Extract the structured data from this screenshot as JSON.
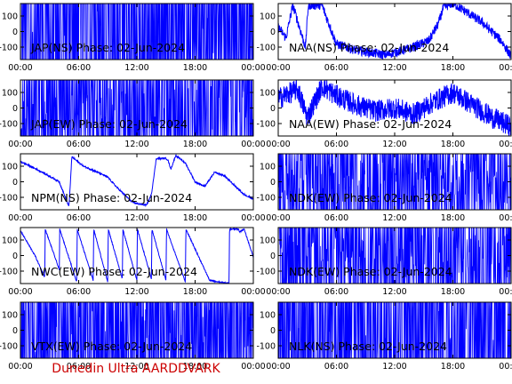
{
  "footer_text": "Dunedin Ultra AARDDVARK",
  "colors": {
    "trace": "#0000ff",
    "axis": "#000000",
    "footer": "#cc0000",
    "background": "#ffffff"
  },
  "chart_data": [
    {
      "type": "line",
      "title": "JAP(NS) Phase: 02-Jun-2024",
      "ylim": [
        -180,
        180
      ],
      "yticks": [
        100,
        0,
        -100
      ],
      "xticks": [
        "00:00",
        "06:00",
        "12:00",
        "18:00",
        "00:00"
      ],
      "xlim_hours": [
        0,
        24
      ],
      "behavior": "dense",
      "fill": 0.98,
      "points": [
        [
          0,
          0
        ],
        [
          24,
          0
        ]
      ]
    },
    {
      "type": "line",
      "title": "NAA(NS) Phase: 02-Jun-2024",
      "ylim": [
        -180,
        180
      ],
      "yticks": [
        100,
        0,
        -100
      ],
      "xticks": [
        "00:00",
        "06:00",
        "12:00",
        "18:00",
        "00:00"
      ],
      "xlim_hours": [
        0,
        24
      ],
      "behavior": "trace",
      "noise": 30,
      "points": [
        [
          0,
          30
        ],
        [
          0.8,
          -40
        ],
        [
          1.5,
          170
        ],
        [
          2.8,
          -100
        ],
        [
          3.1,
          170
        ],
        [
          4.5,
          170
        ],
        [
          6,
          -80
        ],
        [
          8,
          -120
        ],
        [
          11,
          -150
        ],
        [
          13.5,
          -110
        ],
        [
          15.5,
          -60
        ],
        [
          16.5,
          50
        ],
        [
          17,
          150
        ],
        [
          17.8,
          180
        ],
        [
          18.3,
          170
        ],
        [
          21,
          60
        ],
        [
          23,
          -60
        ],
        [
          24,
          -160
        ]
      ]
    },
    {
      "type": "line",
      "title": "JAP(EW) Phase: 02-Jun-2024",
      "ylim": [
        -180,
        180
      ],
      "yticks": [
        100,
        0,
        -100
      ],
      "xticks": [
        "00:00",
        "06:00",
        "12:00",
        "18:00",
        "00:00"
      ],
      "xlim_hours": [
        0,
        24
      ],
      "behavior": "dense",
      "fill": 0.85,
      "points": [
        [
          0,
          0
        ],
        [
          24,
          0
        ]
      ]
    },
    {
      "type": "line",
      "title": "NAA(EW) Phase: 02-Jun-2024",
      "ylim": [
        -180,
        180
      ],
      "yticks": [
        100,
        0,
        -100
      ],
      "xticks": [
        "00:00",
        "06:00",
        "12:00",
        "18:00",
        "00:00"
      ],
      "xlim_hours": [
        0,
        24
      ],
      "behavior": "trace",
      "noise": 70,
      "points": [
        [
          0,
          60
        ],
        [
          2,
          120
        ],
        [
          3,
          -60
        ],
        [
          4.5,
          140
        ],
        [
          6,
          80
        ],
        [
          8,
          20
        ],
        [
          10,
          -20
        ],
        [
          12,
          0
        ],
        [
          14,
          -40
        ],
        [
          16,
          40
        ],
        [
          18,
          100
        ],
        [
          20,
          20
        ],
        [
          22,
          -60
        ],
        [
          24,
          -120
        ]
      ]
    },
    {
      "type": "line",
      "title": "NPM(NS) Phase: 02-Jun-2024",
      "ylim": [
        -180,
        180
      ],
      "yticks": [
        100,
        0,
        -100
      ],
      "xticks": [
        "00:00",
        "06:00",
        "12:00",
        "18:00",
        "00:00"
      ],
      "xlim_hours": [
        0,
        24
      ],
      "behavior": "trace",
      "noise": 5,
      "points": [
        [
          0,
          130
        ],
        [
          2,
          70
        ],
        [
          4,
          0
        ],
        [
          5,
          -160
        ],
        [
          5.3,
          160
        ],
        [
          6.5,
          100
        ],
        [
          8,
          60
        ],
        [
          9,
          30
        ],
        [
          10,
          -40
        ],
        [
          11.5,
          -130
        ],
        [
          12,
          -140
        ],
        [
          13,
          -150
        ],
        [
          13.5,
          -80
        ],
        [
          14,
          150
        ],
        [
          15,
          150
        ],
        [
          15.2,
          140
        ],
        [
          15.5,
          80
        ],
        [
          16,
          170
        ],
        [
          17,
          120
        ],
        [
          17.5,
          60
        ],
        [
          18,
          0
        ],
        [
          19,
          -30
        ],
        [
          20,
          60
        ],
        [
          21,
          40
        ],
        [
          22,
          -20
        ],
        [
          23,
          -80
        ],
        [
          24,
          -110
        ]
      ]
    },
    {
      "type": "line",
      "title": "NDK(EW) Phase: 02-Jun-2024",
      "ylim": [
        -180,
        180
      ],
      "yticks": [
        100,
        0,
        -100
      ],
      "xticks": [
        "00:00",
        "06:00",
        "12:00",
        "18:00",
        "00:00"
      ],
      "xlim_hours": [
        0,
        24
      ],
      "behavior": "dense",
      "fill": 0.7,
      "points": [
        [
          0,
          0
        ],
        [
          24,
          0
        ]
      ]
    },
    {
      "type": "line",
      "title": "NWC(EW) Phase: 02-Jun-2024",
      "ylim": [
        -180,
        180
      ],
      "yticks": [
        100,
        0,
        -100
      ],
      "xticks": [
        "00:00",
        "06:00",
        "12:00",
        "18:00",
        "00:00"
      ],
      "xlim_hours": [
        0,
        24
      ],
      "behavior": "sawtooth",
      "noise": 4,
      "points": [
        [
          0,
          160
        ],
        [
          1.5,
          0
        ],
        [
          2.5,
          -140
        ],
        [
          2.55,
          170
        ],
        [
          4,
          -90
        ],
        [
          4.05,
          170
        ],
        [
          5.8,
          -170
        ],
        [
          5.85,
          170
        ],
        [
          7.5,
          -160
        ],
        [
          7.55,
          170
        ],
        [
          9,
          -170
        ],
        [
          9.05,
          170
        ],
        [
          10.5,
          -150
        ],
        [
          10.55,
          170
        ],
        [
          12,
          -160
        ],
        [
          12.05,
          170
        ],
        [
          13.5,
          -150
        ],
        [
          13.55,
          170
        ],
        [
          15,
          -160
        ],
        [
          15.05,
          170
        ],
        [
          17,
          -170
        ],
        [
          17.05,
          170
        ],
        [
          19.5,
          -160
        ],
        [
          21.5,
          -180
        ],
        [
          21.55,
          170
        ],
        [
          22.5,
          170
        ],
        [
          22.55,
          150
        ],
        [
          23,
          170
        ],
        [
          23.05,
          170
        ],
        [
          24,
          -10
        ]
      ]
    },
    {
      "type": "line",
      "title": "NDK(EW) Phase: 02-Jun-2024",
      "ylim": [
        -180,
        180
      ],
      "yticks": [
        100,
        0,
        -100
      ],
      "xticks": [
        "00:00",
        "06:00",
        "12:00",
        "18:00",
        "00:00"
      ],
      "xlim_hours": [
        0,
        24
      ],
      "behavior": "dense",
      "fill": 0.75,
      "points": [
        [
          0,
          0
        ],
        [
          24,
          0
        ]
      ]
    },
    {
      "type": "line",
      "title": "VTX(EW) Phase: 02-Jun-2024",
      "ylim": [
        -180,
        180
      ],
      "yticks": [
        100,
        0,
        -100
      ],
      "xticks": [
        "00:00",
        "06:00",
        "12:00",
        "18:00",
        "00:00"
      ],
      "xlim_hours": [
        0,
        24
      ],
      "behavior": "dense",
      "fill": 0.9,
      "points": [
        [
          0,
          0
        ],
        [
          24,
          0
        ]
      ]
    },
    {
      "type": "line",
      "title": "NLK(NS) Phase: 02-Jun-2024",
      "ylim": [
        -180,
        180
      ],
      "yticks": [
        100,
        0,
        -100
      ],
      "xticks": [
        "00:00",
        "06:00",
        "12:00",
        "18:00",
        "00:00"
      ],
      "xlim_hours": [
        0,
        24
      ],
      "behavior": "dense",
      "fill": 0.97,
      "points": [
        [
          0,
          0
        ],
        [
          24,
          0
        ]
      ]
    }
  ]
}
